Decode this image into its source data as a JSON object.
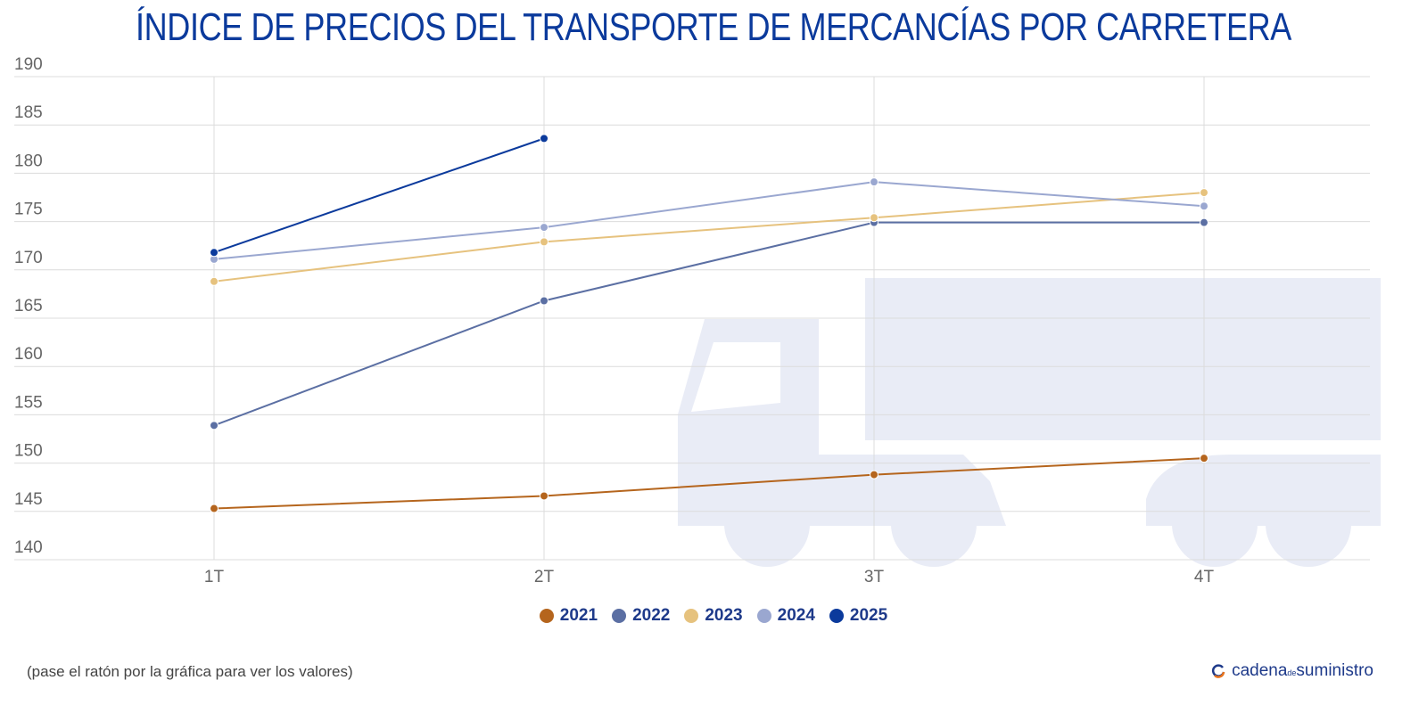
{
  "chart_data": {
    "type": "line",
    "title": "ÍNDICE DE PRECIOS DEL TRANSPORTE DE MERCANCÍAS POR CARRETERA",
    "xlabel": "",
    "ylabel": "",
    "categories": [
      "1T",
      "2T",
      "3T",
      "4T"
    ],
    "ylim": [
      140,
      190
    ],
    "yticks": [
      140,
      145,
      150,
      155,
      160,
      165,
      170,
      175,
      180,
      185,
      190
    ],
    "grid": true,
    "legend_position": "bottom",
    "series": [
      {
        "name": "2021",
        "color": "#b5651d",
        "values": [
          145.3,
          146.6,
          148.8,
          150.5
        ]
      },
      {
        "name": "2022",
        "color": "#5b6fa3",
        "values": [
          153.9,
          166.8,
          174.9,
          174.9
        ]
      },
      {
        "name": "2023",
        "color": "#e6c27e",
        "values": [
          168.8,
          172.9,
          175.4,
          178.0
        ]
      },
      {
        "name": "2024",
        "color": "#9aa7d0",
        "values": [
          171.1,
          174.4,
          179.1,
          176.6
        ]
      },
      {
        "name": "2025",
        "color": "#0b3a9c",
        "values": [
          171.8,
          183.6,
          null,
          null
        ]
      }
    ]
  },
  "note": "(pase el ratón por la gráfica para ver los valores)",
  "logo": {
    "text_main": "cadena",
    "text_small": "de",
    "text_end": "suministro"
  },
  "watermark_icon": "truck-icon"
}
